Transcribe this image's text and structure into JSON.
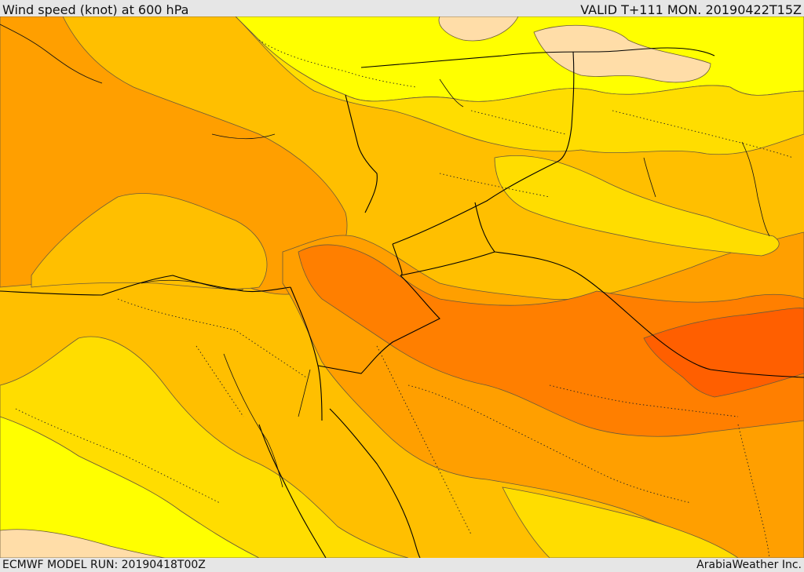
{
  "header": {
    "title": "Wind speed (knot) at 600 hPa",
    "valid": "VALID T+111 MON. 20190422T15Z"
  },
  "footer": {
    "model_run": "ECMWF MODEL RUN: 20190418T00Z",
    "credit": "ArabiaWeather Inc."
  },
  "colors": {
    "band_lowest": "#ffdda8",
    "band_1": "#ffff00",
    "band_2": "#ffdd00",
    "band_3": "#ffbf00",
    "band_4": "#ff9f00",
    "band_5": "#ff7f00",
    "band_6": "#ff5f00",
    "borders": "#000000",
    "contours": "#6a5a3a"
  }
}
